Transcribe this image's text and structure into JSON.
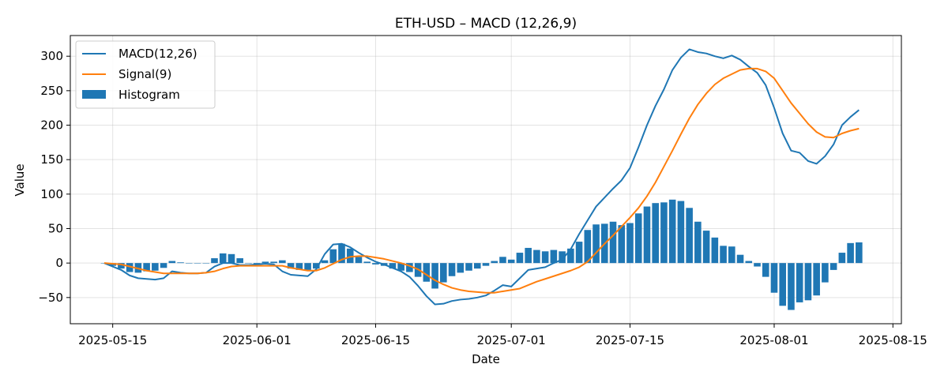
{
  "chart_data": {
    "type": "line",
    "title": "ETH-USD – MACD (12,26,9)",
    "xlabel": "Date",
    "ylabel": "Value",
    "x_start": "2025-05-14",
    "x_step_days": 1,
    "xlim": [
      "2025-05-10",
      "2025-08-16"
    ],
    "ylim": [
      -88,
      330
    ],
    "x_ticks": [
      "2025-05-15",
      "2025-06-01",
      "2025-06-15",
      "2025-07-01",
      "2025-07-15",
      "2025-08-01",
      "2025-08-15"
    ],
    "y_ticks": [
      -50,
      0,
      50,
      100,
      150,
      200,
      250,
      300
    ],
    "grid": true,
    "legend_position": "top-left",
    "series": [
      {
        "name": "MACD(12,26)",
        "type": "line",
        "color": "#1f77b4",
        "values": [
          0,
          -5,
          -10,
          -18,
          -22,
          -23,
          -24,
          -22,
          -12,
          -14,
          -15,
          -15,
          -14,
          -5,
          0,
          0,
          -3,
          -3,
          -2,
          -1,
          -2,
          -12,
          -17,
          -18,
          -19,
          -9,
          13,
          27,
          28,
          23,
          15,
          8,
          2,
          -2,
          -7,
          -12,
          -20,
          -33,
          -48,
          -60,
          -59,
          -55,
          -53,
          -52,
          -50,
          -47,
          -40,
          -32,
          -34,
          -22,
          -10,
          -8,
          -6,
          0,
          5,
          20,
          42,
          62,
          82,
          95,
          108,
          120,
          138,
          168,
          200,
          228,
          252,
          280,
          298,
          310,
          306,
          304,
          300,
          297,
          301,
          295,
          285,
          276,
          258,
          225,
          188,
          163,
          160,
          148,
          144,
          155,
          172,
          200,
          212,
          222
        ]
      },
      {
        "name": "Signal(9)",
        "type": "line",
        "color": "#ff7f0e",
        "values": [
          0,
          -1,
          -2,
          -5,
          -8,
          -11,
          -13,
          -15,
          -15,
          -15,
          -15,
          -15,
          -14,
          -12,
          -8,
          -5,
          -4,
          -4,
          -4,
          -4,
          -4,
          -4,
          -7,
          -9,
          -11,
          -11,
          -7,
          -1,
          5,
          9,
          10,
          10,
          8,
          6,
          3,
          0,
          -4,
          -9,
          -17,
          -25,
          -31,
          -36,
          -39,
          -41,
          -42,
          -43,
          -43,
          -41,
          -39,
          -37,
          -32,
          -27,
          -23,
          -19,
          -15,
          -11,
          -6,
          2,
          15,
          28,
          40,
          53,
          66,
          80,
          97,
          117,
          140,
          163,
          187,
          210,
          230,
          246,
          259,
          268,
          274,
          280,
          282,
          282,
          278,
          268,
          250,
          232,
          217,
          202,
          190,
          183,
          182,
          188,
          192,
          195
        ]
      },
      {
        "name": "Histogram",
        "type": "bar",
        "color": "#1f77b4",
        "values": [
          0,
          -4,
          -8,
          -13,
          -14,
          -12,
          -11,
          -7,
          3,
          1,
          0,
          0,
          0,
          7,
          14,
          13,
          7,
          0,
          -2,
          2,
          2,
          4,
          -8,
          -10,
          -10,
          -8,
          4,
          20,
          28,
          21,
          9,
          2,
          -2,
          -4,
          -8,
          -11,
          -13,
          -20,
          -27,
          -37,
          -28,
          -19,
          -14,
          -11,
          -8,
          -4,
          3,
          9,
          5,
          15,
          22,
          19,
          17,
          19,
          17,
          21,
          31,
          48,
          56,
          57,
          60,
          55,
          58,
          72,
          82,
          87,
          88,
          92,
          90,
          80,
          60,
          47,
          37,
          25,
          24,
          12,
          3,
          -5,
          -20,
          -43,
          -62,
          -68,
          -57,
          -54,
          -47,
          -28,
          -10,
          15,
          29,
          30
        ]
      }
    ]
  }
}
